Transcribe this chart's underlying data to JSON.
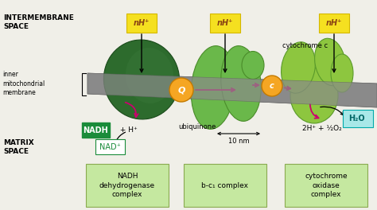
{
  "bg_color": "#f0efe8",
  "membrane_color": "#888888",
  "complex1_dark": "#2d6b2d",
  "complex1_mid": "#3d8c3d",
  "complex2_color": "#6ab84a",
  "complex3_color": "#8dc63f",
  "ubiquinone_color": "#f5a623",
  "cytc_color": "#f5a623",
  "nadh_box_color": "#1a8c3a",
  "nad_box_color": "#1a8c3a",
  "label_box_color": "#c5e8a0",
  "yellow_label_color": "#f5e020",
  "yellow_border": "#d4b800",
  "arrow_color": "#cc006e",
  "black": "#111111",
  "white": "#ffffff",
  "cyan_box": "#a8e8e8",
  "cyan_border": "#00aaaa",
  "intermembrane_text": "INTERMEMBRANE\nSPACE",
  "matrix_text": "MATRIX\nSPACE",
  "membrane_label": "inner\nmitochondrial\nmembrane",
  "nH_label": "nH⁺",
  "labels_bottom": [
    "NADH\ndehydrogenase\ncomplex",
    "b-c₁ complex",
    "cytochrome\noxidase\ncomplex"
  ],
  "ubiquinone_label": "ubiquinone",
  "scale_label": "10 nm",
  "cytc_label": "cytochrome c",
  "water_label": "H₂O",
  "nadh_label": "NADH",
  "nad_label": "NAD⁺",
  "hplus_label": " + H⁺",
  "product_label": "2H⁺ + ½O₂",
  "q_label": "Q",
  "c_label": "c"
}
